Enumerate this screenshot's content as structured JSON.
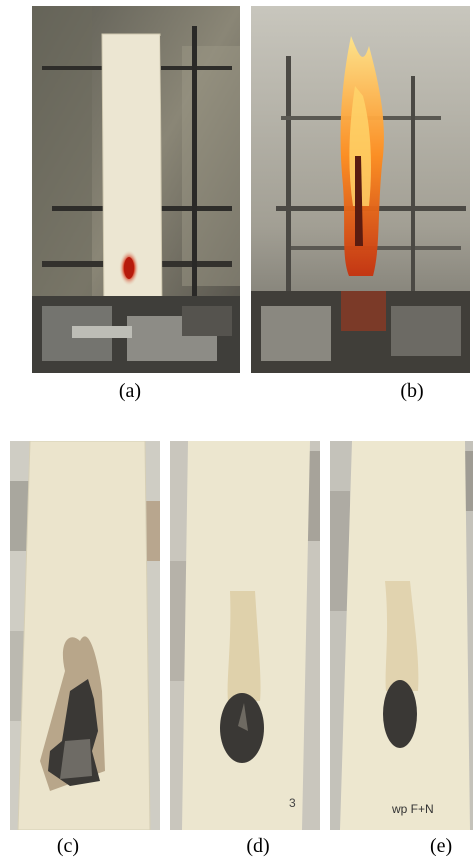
{
  "figure": {
    "panels": [
      {
        "label": "(a)",
        "scene": "fabric-strip-ignition-rig"
      },
      {
        "label": "(b)",
        "scene": "fabric-strip-burning-flames"
      },
      {
        "label": "(c)",
        "scene": "burned-fabric-strip-large-char-hole"
      },
      {
        "label": "(d)",
        "scene": "burned-fabric-strip-small-char"
      },
      {
        "label": "(e)",
        "scene": "burned-fabric-strip-small-char-marked"
      }
    ],
    "sample_marks": {
      "d": "3",
      "e": "wp F+N"
    }
  }
}
